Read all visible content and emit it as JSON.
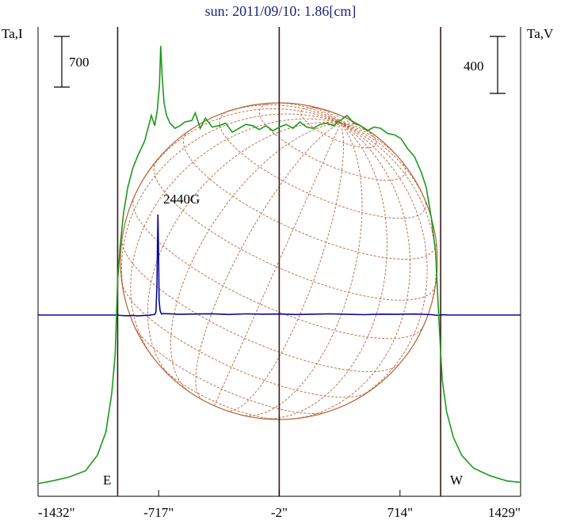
{
  "chart_data": {
    "type": "line",
    "title": "sun: 2011/09/10: 1.86[cm]",
    "left_axis_label": "Ta,I",
    "right_axis_label": "Ta,V",
    "left_scale_bar": "700",
    "right_scale_bar": "400",
    "x_ticks": [
      {
        "value": -1432,
        "label": "-1432\""
      },
      {
        "value": -717,
        "label": "-717\""
      },
      {
        "value": -2,
        "label": "-2\""
      },
      {
        "value": 714,
        "label": "714\""
      },
      {
        "value": 1429,
        "label": "1429\""
      }
    ],
    "xlim": [
      -1432,
      1429
    ],
    "limb_labels": {
      "east": "E",
      "west": "W"
    },
    "vertical_lines_x": [
      -960,
      -2,
      955
    ],
    "annotation": {
      "text": "2440G",
      "x": -720
    },
    "colors": {
      "intensity": "#1a9a1a",
      "polarization": "#0a0a9a",
      "grid": "#b5653a",
      "vlines": "#3a1a1a",
      "title": "#1a237e"
    },
    "series": [
      {
        "name": "Ta,I",
        "units": "relative",
        "x": [
          -1432,
          -1350,
          -1250,
          -1150,
          -1080,
          -1030,
          -995,
          -975,
          -960,
          -945,
          -925,
          -900,
          -870,
          -840,
          -800,
          -760,
          -740,
          -725,
          -712,
          -705,
          -695,
          -685,
          -670,
          -650,
          -620,
          -590,
          -560,
          -520,
          -500,
          -470,
          -440,
          -400,
          -360,
          -320,
          -280,
          -240,
          -200,
          -160,
          -120,
          -80,
          -40,
          0,
          40,
          80,
          120,
          160,
          200,
          240,
          280,
          320,
          360,
          400,
          440,
          480,
          520,
          560,
          600,
          640,
          680,
          720,
          760,
          800,
          840,
          870,
          900,
          925,
          940,
          955,
          965,
          990,
          1030,
          1080,
          1150,
          1250,
          1350,
          1429
        ],
        "y": [
          0,
          20,
          50,
          100,
          220,
          400,
          700,
          1000,
          1580,
          1850,
          2100,
          2300,
          2450,
          2550,
          2660,
          2860,
          2780,
          2900,
          3100,
          3400,
          3140,
          2960,
          2860,
          2800,
          2760,
          2780,
          2810,
          2820,
          2880,
          2760,
          2840,
          2770,
          2780,
          2800,
          2730,
          2760,
          2790,
          2780,
          2750,
          2780,
          2740,
          2770,
          2790,
          2760,
          2810,
          2770,
          2760,
          2790,
          2800,
          2780,
          2820,
          2860,
          2800,
          2780,
          2740,
          2770,
          2760,
          2720,
          2710,
          2680,
          2600,
          2540,
          2420,
          2300,
          2060,
          1800,
          1400,
          1020,
          800,
          560,
          360,
          220,
          120,
          60,
          20,
          10
        ]
      },
      {
        "name": "Ta,V",
        "units": "relative",
        "x": [
          -1432,
          -960,
          -940,
          -900,
          -870,
          -840,
          -800,
          -770,
          -750,
          -740,
          -733,
          -727,
          -724,
          -721,
          -718,
          -714,
          -708,
          -700,
          -690,
          -650,
          -600,
          -500,
          -400,
          -300,
          -200,
          -100,
          0,
          100,
          200,
          300,
          400,
          500,
          600,
          700,
          800,
          900,
          940,
          955,
          970,
          1000,
          1429
        ],
        "y": [
          0,
          0,
          -6,
          -10,
          -4,
          -12,
          -4,
          -2,
          6,
          10,
          40,
          420,
          980,
          1400,
          960,
          200,
          60,
          14,
          20,
          18,
          10,
          14,
          18,
          8,
          16,
          12,
          14,
          8,
          12,
          16,
          10,
          6,
          12,
          10,
          14,
          6,
          -6,
          0,
          4,
          0,
          0
        ]
      }
    ]
  }
}
